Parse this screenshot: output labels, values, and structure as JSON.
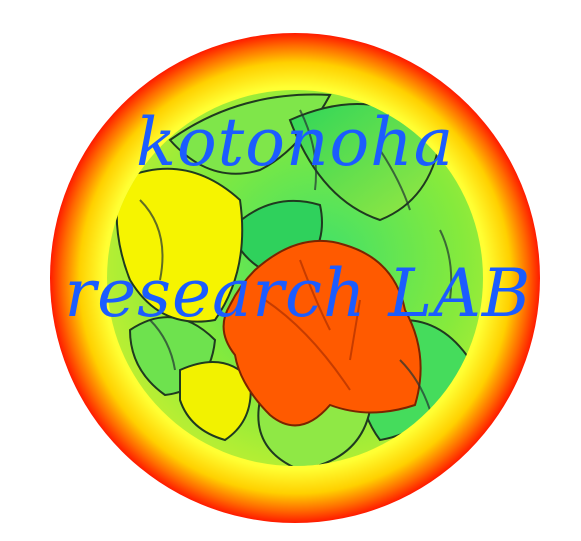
{
  "logo": {
    "line1": "kotonoha",
    "line2": "research LAB",
    "colors": {
      "ring_outer": "#ff1a00",
      "ring_mid": "#ffd400",
      "ring_inner": "#ffff40",
      "leaf_green_light": "#a6ee3a",
      "leaf_green_mid": "#5ee65e",
      "leaf_green_dark": "#22c25a",
      "leaf_yellow": "#f4f400",
      "leaf_orange": "#ff5a00",
      "text": "#1b5cff"
    }
  }
}
